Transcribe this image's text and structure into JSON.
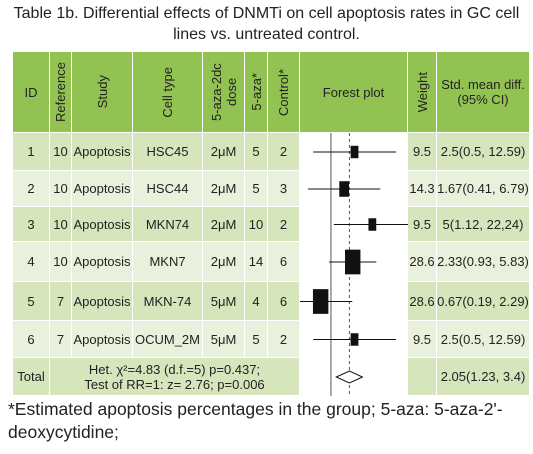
{
  "title": "Table 1b. Differential effects of DNMTi on cell apoptosis rates in GC cell lines vs. untreated control.",
  "table": {
    "headers": [
      "ID",
      "Reference",
      "Study",
      "Cell type",
      "5-aza-2dc dose",
      "5-aza*",
      "Control*",
      "Forest plot",
      "Weight",
      "Std. mean diff. (95% CI)"
    ],
    "rows": [
      {
        "id": 1,
        "reference": 10,
        "study": "Apoptosis",
        "cell_type": "HSC45",
        "dose": "2μM",
        "aza": 5,
        "control": 2,
        "weight": 9.5,
        "smd": {
          "estimate": 2.5,
          "ci_low": 0.5,
          "ci_high": 12.59,
          "label": "2.5(0.5, 12.59)"
        }
      },
      {
        "id": 2,
        "reference": 10,
        "study": "Apoptosis",
        "cell_type": "HSC44",
        "dose": "2μM",
        "aza": 5,
        "control": 3,
        "weight": 14.3,
        "smd": {
          "estimate": 1.67,
          "ci_low": 0.41,
          "ci_high": 6.79,
          "label": "1.67(0.41, 6.79)"
        }
      },
      {
        "id": 3,
        "reference": 10,
        "study": "Apoptosis",
        "cell_type": "MKN74",
        "dose": "2μM",
        "aza": 10,
        "control": 2,
        "weight": 9.5,
        "smd": {
          "estimate": 5,
          "ci_low": 1.12,
          "ci_high": 22.24,
          "label": "5(1.12, 22,24)"
        }
      },
      {
        "id": 4,
        "reference": 10,
        "study": "Apoptosis",
        "cell_type": "MKN7",
        "dose": "2μM",
        "aza": 14,
        "control": 6,
        "weight": 28.6,
        "smd": {
          "estimate": 2.33,
          "ci_low": 0.93,
          "ci_high": 5.83,
          "label": "2.33(0.93, 5.83)"
        }
      },
      {
        "id": 5,
        "reference": 7,
        "study": "Apoptosis",
        "cell_type": "MKN-74",
        "dose": "5μM",
        "aza": 4,
        "control": 6,
        "weight": 28.6,
        "smd": {
          "estimate": 0.67,
          "ci_low": 0.19,
          "ci_high": 2.29,
          "label": "0.67(0.19, 2.29)"
        }
      },
      {
        "id": 6,
        "reference": 7,
        "study": "Apoptosis",
        "cell_type": "OCUM_2M",
        "dose": "5μM",
        "aza": 5,
        "control": 2,
        "weight": 9.5,
        "smd": {
          "estimate": 2.5,
          "ci_low": 0.5,
          "ci_high": 12.59,
          "label": "2.5(0.5, 12.59)"
        }
      }
    ],
    "total": {
      "label": "Total",
      "heterogeneity": "Het. χ²=4.83 (d.f.=5) p=0.437;",
      "test": "Test of RR=1: z= 2.76; p=0.006",
      "smd": {
        "estimate": 2.05,
        "ci_low": 1.23,
        "ci_high": 3.4,
        "label": "2.05(1.23, 3.4)"
      }
    }
  },
  "forest": {
    "xlim": [
      0.3,
      20
    ],
    "log": true,
    "null_value": 1
  },
  "footnote": "*Estimated apoptosis percentages in the group; 5-aza: 5-aza-2'-deoxycytidine;"
}
